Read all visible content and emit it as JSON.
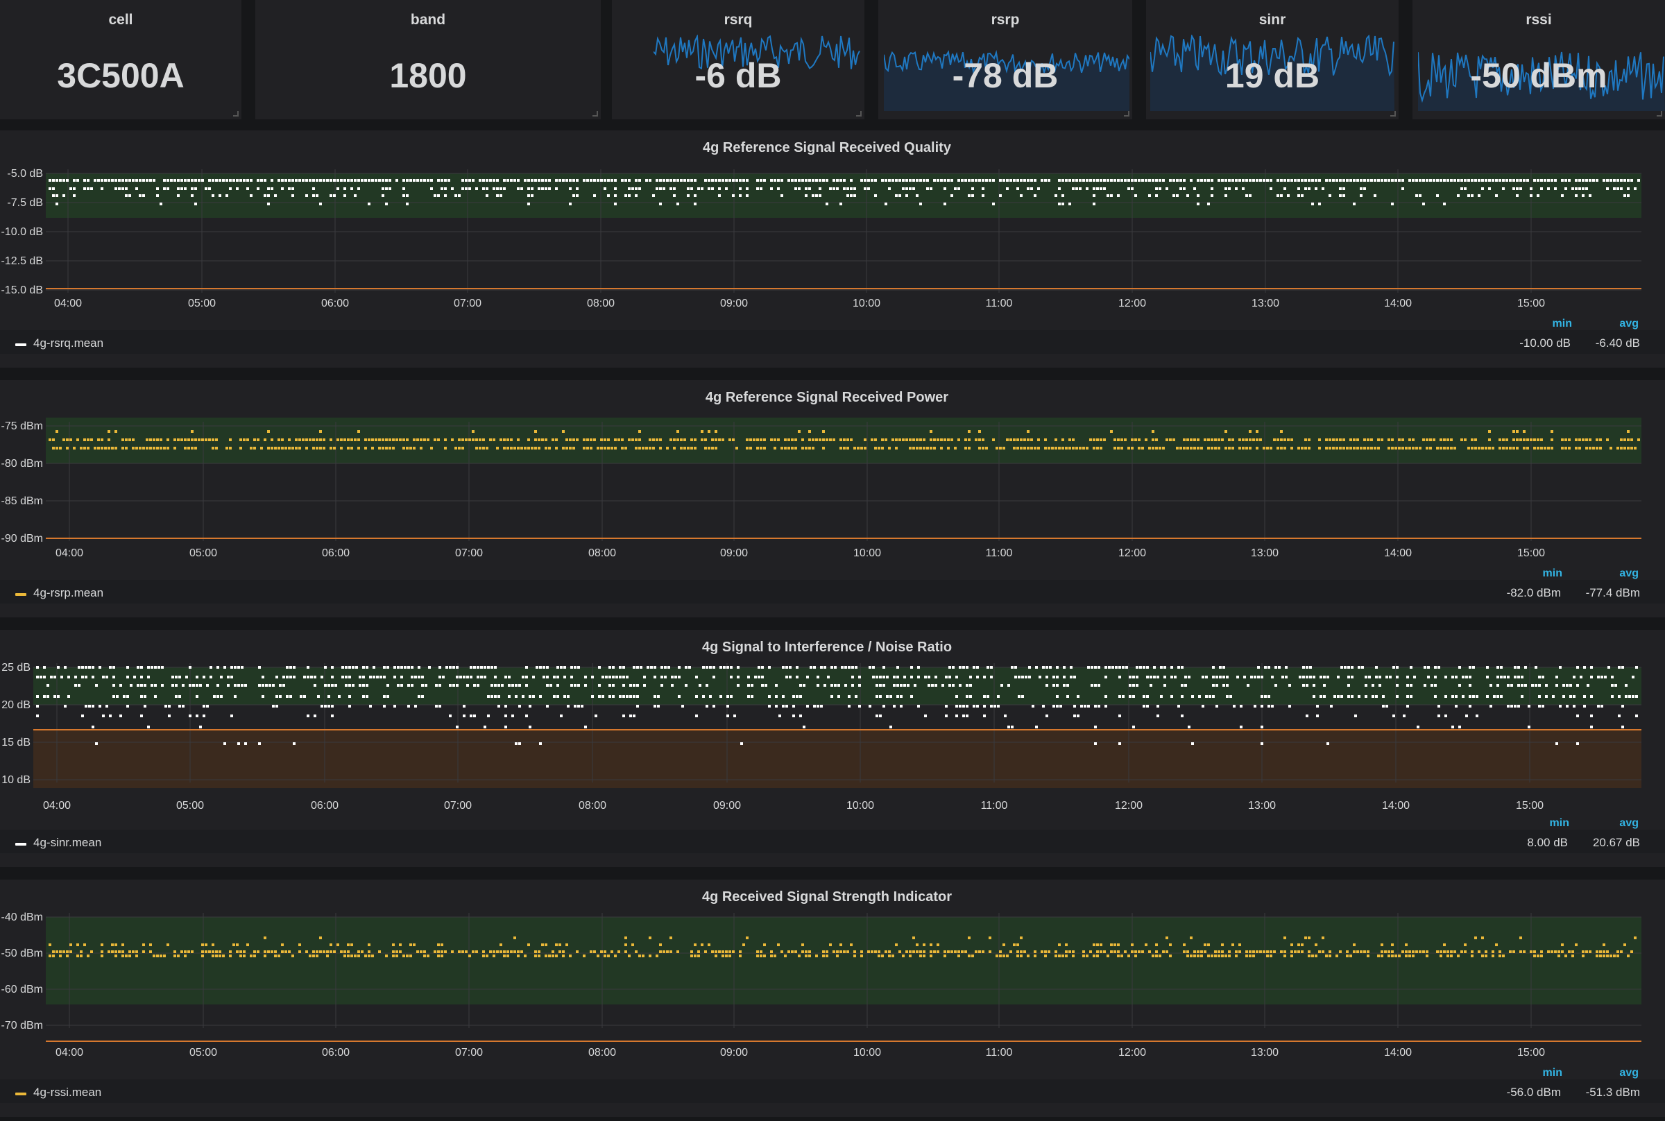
{
  "stats": [
    {
      "title": "cell",
      "value": "3C500A"
    },
    {
      "title": "band",
      "value": "1800"
    },
    {
      "title": "rsrq",
      "value": "-6 dB"
    },
    {
      "title": "rsrp",
      "value": "-78 dB"
    },
    {
      "title": "sinr",
      "value": "19 dB"
    },
    {
      "title": "rssi",
      "value": "-50 dBm"
    }
  ],
  "colors": {
    "white_series": "#ffffff",
    "yellow_series": "#eab839",
    "ok_band": "#223824",
    "warn_band": "#3b2a1e",
    "threshold_line": "#d6782e",
    "legend_header": "#33b5e5",
    "spark_line": "#1f78c1",
    "spark_fill": "#1d2b3d"
  },
  "time_axis": [
    "04:00",
    "05:00",
    "06:00",
    "07:00",
    "08:00",
    "09:00",
    "10:00",
    "11:00",
    "12:00",
    "13:00",
    "14:00",
    "15:00"
  ],
  "panels": [
    {
      "title": "4g Reference Signal Received Quality",
      "y_ticks": [
        "-5.0 dB",
        "-7.5 dB",
        "-10.0 dB",
        "-12.5 dB",
        "-15.0 dB"
      ],
      "legend": {
        "name": "4g-rsrq.mean",
        "min_label": "min",
        "avg_label": "avg",
        "min": "-10.00 dB",
        "avg": "-6.40 dB"
      }
    },
    {
      "title": "4g Reference Signal Received Power",
      "y_ticks": [
        "-75 dBm",
        "-80 dBm",
        "-85 dBm",
        "-90 dBm"
      ],
      "legend": {
        "name": "4g-rsrp.mean",
        "min_label": "min",
        "avg_label": "avg",
        "min": "-82.0 dBm",
        "avg": "-77.4 dBm"
      }
    },
    {
      "title": "4g Signal to Interference / Noise Ratio",
      "y_ticks": [
        "25 dB",
        "20 dB",
        "15 dB",
        "10 dB"
      ],
      "legend": {
        "name": "4g-sinr.mean",
        "min_label": "min",
        "avg_label": "avg",
        "min": "8.00 dB",
        "avg": "20.67 dB"
      }
    },
    {
      "title": "4g Received Signal Strength Indicator",
      "y_ticks": [
        "-40 dBm",
        "-50 dBm",
        "-60 dBm",
        "-70 dBm"
      ],
      "legend": {
        "name": "4g-rssi.mean",
        "min_label": "min",
        "avg_label": "avg",
        "min": "-56.0 dBm",
        "avg": "-51.3 dBm"
      }
    }
  ]
}
